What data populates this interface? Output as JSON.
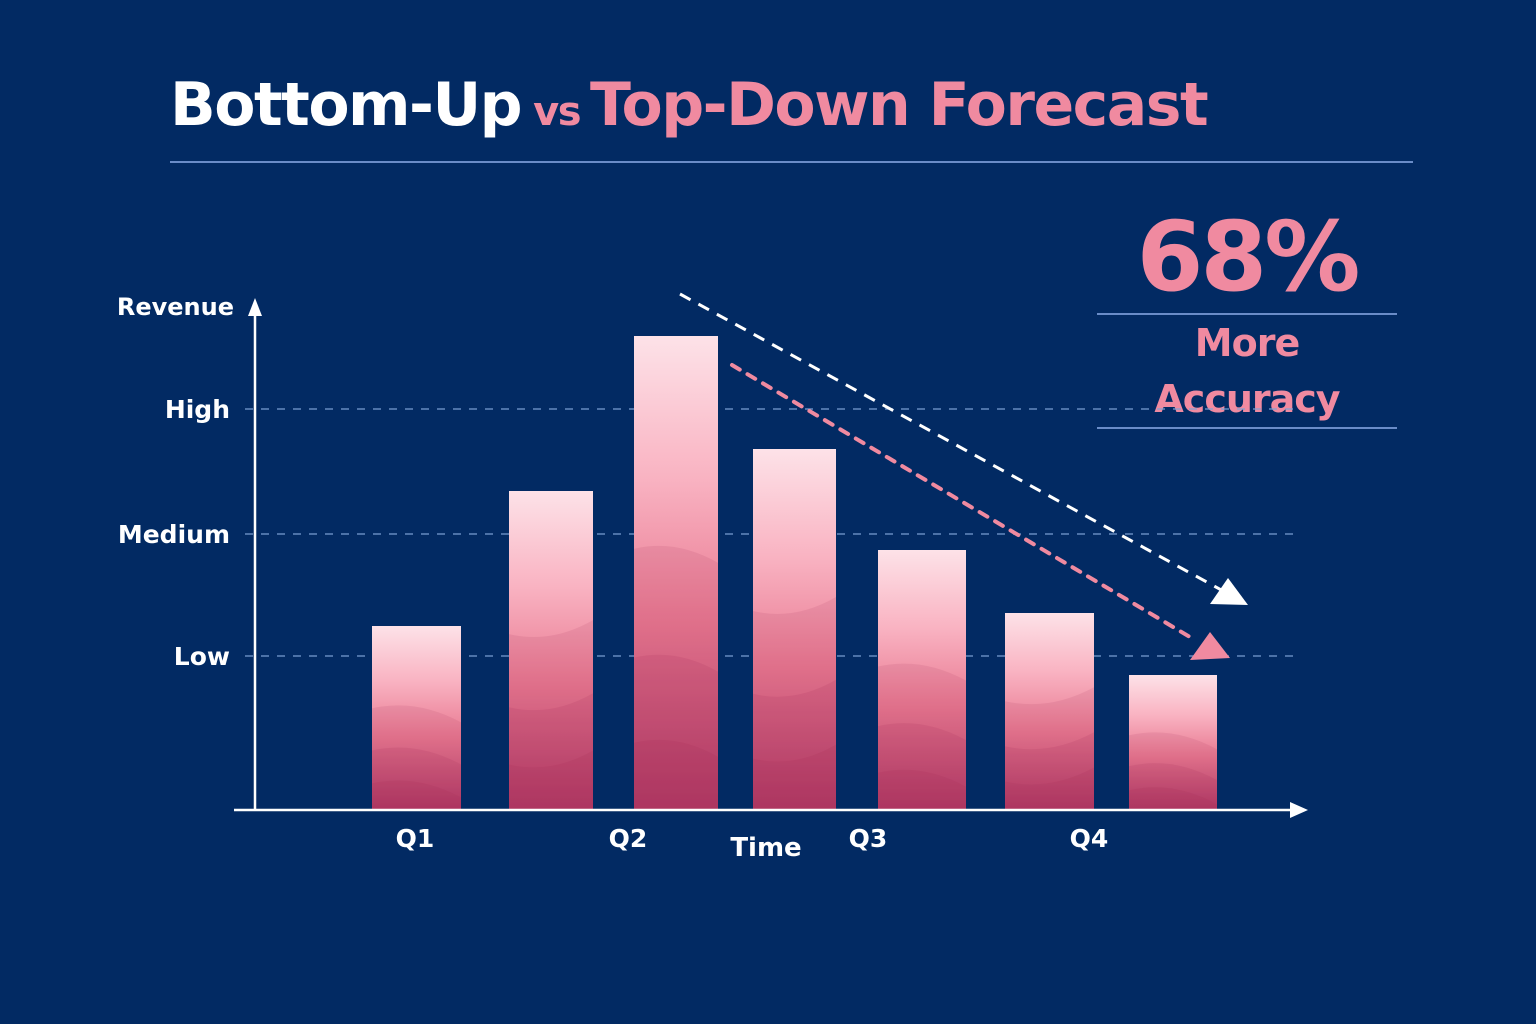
{
  "title": {
    "part1": "Bottom-Up",
    "part2": "vs",
    "part3": "Top-Down Forecast"
  },
  "stat": {
    "value": "68%",
    "label": "More Accuracy"
  },
  "colors": {
    "background": "#022a63",
    "accent_pink": "#f08aa0",
    "rule": "#6a8cc8",
    "bar_top": "#fde2e8",
    "bar_bottom": "#b23a66",
    "trend_white": "#ffffff",
    "trend_pink": "#f08aa0"
  },
  "chart_data": {
    "type": "bar",
    "title": "Bottom-Up vs Top-Down Forecast",
    "xlabel": "Time",
    "ylabel": "Revenue",
    "x_tick_labels": [
      "Q1",
      "Q2",
      "Q3",
      "Q4"
    ],
    "y_tick_labels": [
      "Low",
      "Medium",
      "High"
    ],
    "y_tick_values": [
      1,
      2,
      3
    ],
    "ylim": [
      0,
      4
    ],
    "grid": "dashed horizontal at Low, Medium, High",
    "categories": [
      "Bar 1",
      "Bar 2",
      "Bar 3",
      "Bar 4",
      "Bar 5",
      "Bar 6",
      "Bar 7"
    ],
    "values": [
      1.24,
      2.34,
      3.59,
      2.68,
      1.86,
      1.35,
      0.85
    ],
    "annotations": [
      {
        "type": "trend-arrow",
        "style": "white dashed",
        "direction": "downward",
        "from": "peak (Bar 3)",
        "to": "beyond Bar 7"
      },
      {
        "type": "trend-arrow",
        "style": "pink dashed",
        "direction": "downward",
        "from": "Bar 3",
        "to": "Bar 7 top"
      },
      {
        "type": "callout",
        "text": "68% More Accuracy"
      }
    ],
    "legend": null
  }
}
